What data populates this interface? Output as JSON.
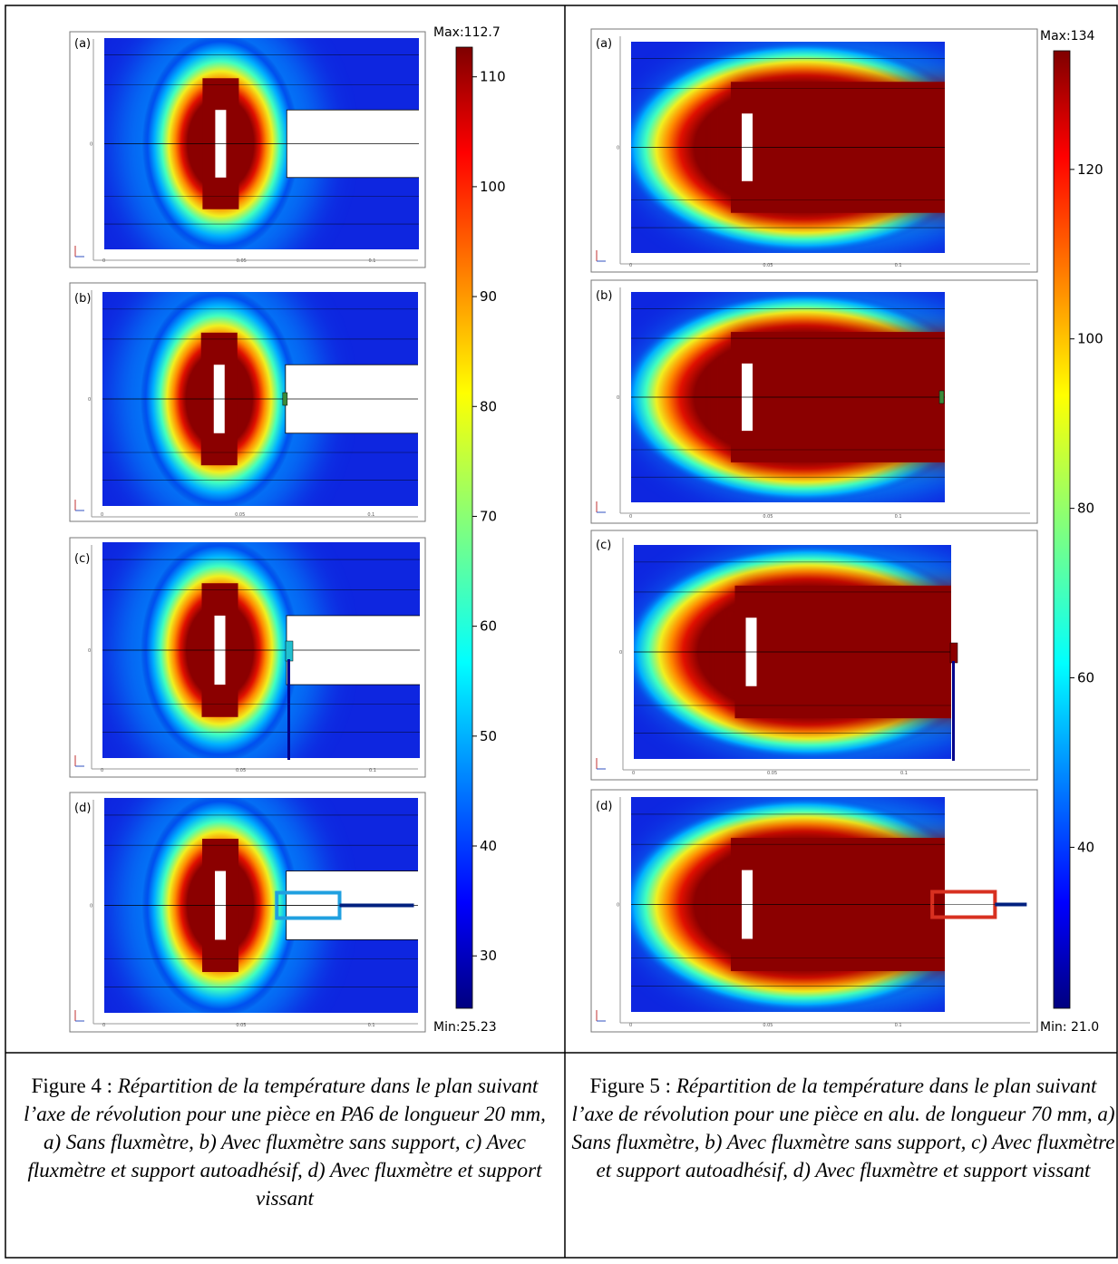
{
  "figures": [
    {
      "id": "fig4",
      "colorbar": {
        "max_label": "Max:112.7",
        "min_label": "Min:25.23",
        "min": 25.23,
        "max": 112.7,
        "ticks": [
          "110",
          "100",
          "90",
          "80",
          "70",
          "60",
          "50",
          "40",
          "30"
        ],
        "tick_values": [
          110,
          100,
          90,
          80,
          70,
          60,
          50,
          40,
          30
        ]
      },
      "panels": [
        {
          "label": "(a)",
          "variant": "none"
        },
        {
          "label": "(b)",
          "variant": "nosupport"
        },
        {
          "label": "(c)",
          "variant": "adhesive"
        },
        {
          "label": "(d)",
          "variant": "screw"
        }
      ],
      "x_tick_labels": [
        "0",
        "0.05",
        "0.1"
      ],
      "y_tick_label": "0",
      "caption": {
        "lead": "Figure 4 : ",
        "text": "Répartition de la température dans le plan suivant l’axe de révolution pour une pièce en PA6 de longueur 20 mm, a) Sans fluxmètre, b) Avec fluxmètre sans support, c) Avec fluxmètre et support autoadhésif, d) Avec fluxmètre et support vissant"
      }
    },
    {
      "id": "fig5",
      "colorbar": {
        "max_label": "Max:134",
        "min_label": "Min: 21.0",
        "min": 21.0,
        "max": 134,
        "ticks": [
          "120",
          "100",
          "80",
          "60",
          "40"
        ],
        "tick_values": [
          120,
          100,
          80,
          60,
          40
        ]
      },
      "panels": [
        {
          "label": "(a)",
          "variant": "none"
        },
        {
          "label": "(b)",
          "variant": "nosupport"
        },
        {
          "label": "(c)",
          "variant": "adhesive"
        },
        {
          "label": "(d)",
          "variant": "screw"
        }
      ],
      "x_tick_labels": [
        "0",
        "0.05",
        "0.1"
      ],
      "y_tick_label": "0",
      "caption": {
        "lead": "Figure 5 : ",
        "text": "Répartition de la température dans le plan suivant l’axe de révolution pour une pièce en alu. de longueur 70 mm, a) Sans fluxmètre,  b) Avec fluxmètre sans support, c) Avec fluxmètre et support autoadhésif, d) Avec fluxmètre et support vissant"
      }
    }
  ],
  "colors": {
    "jet": [
      "#00007f",
      "#0000ff",
      "#007fff",
      "#00ffff",
      "#7fff7f",
      "#ffff00",
      "#ff7f00",
      "#ff0000",
      "#7f0000"
    ],
    "border": "#000000"
  }
}
